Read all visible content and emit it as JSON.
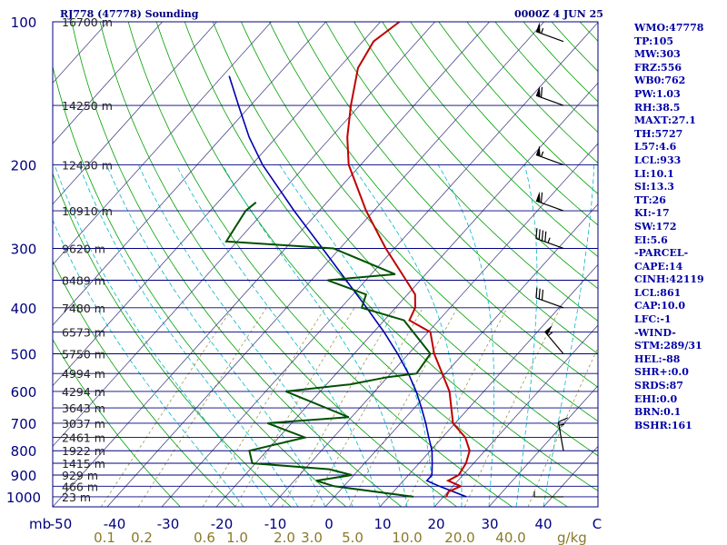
{
  "header": {
    "title": "RJ778 (47778) Sounding",
    "time": "0000Z  4 JUN 25"
  },
  "indices": [
    "WMO:47778",
    "TP:105",
    "MW:303",
    "FRZ:556",
    "WB0:762",
    "PW:1.03",
    "RH:38.5",
    "MAXT:27.1",
    "TH:5727",
    "L57:4.6",
    "LCL:933",
    "LI:10.1",
    "SI:13.3",
    "TT:26",
    "KI:-17",
    "SW:172",
    "EI:5.6",
    "-PARCEL-",
    "CAPE:14",
    "CINH:42119",
    "LCL:861",
    "CAP:10.0",
    "LFC:-1",
    "-WIND-",
    "STM:289/31",
    "HEL:-88",
    "SHR+:0.0",
    "SRDS:87",
    "EHI:0.0",
    "BRN:0.1",
    "BSHR:161"
  ],
  "colors": {
    "isobar": "#00007f",
    "isotherm": "#4a4a8a",
    "dry_adiabat": "#00a000",
    "moist_adiabat": "#00b8c8",
    "mixing_ratio": "#9a9a4a",
    "temperature": "#c00000",
    "dewpoint": "#005000",
    "parcel": "#0000b0",
    "labels_left": "#00007f",
    "labels_bottom_temp": "#00007f",
    "labels_bottom_mix": "#8a7a2a",
    "wind": "#000000"
  },
  "chart_data": {
    "type": "skew-t",
    "pressure_labels": [
      "100",
      "200",
      "300",
      "400",
      "500",
      "600",
      "700",
      "800",
      "900",
      "1000"
    ],
    "pressure_levels": [
      100,
      200,
      300,
      400,
      500,
      600,
      700,
      800,
      900,
      1000
    ],
    "height_labels": [
      {
        "p": 100,
        "text": "16700 m"
      },
      {
        "p": 150,
        "text": "14250 m"
      },
      {
        "p": 200,
        "text": "12430 m"
      },
      {
        "p": 250,
        "text": "10910 m"
      },
      {
        "p": 300,
        "text": "9620 m"
      },
      {
        "p": 350,
        "text": "8489 m"
      },
      {
        "p": 400,
        "text": "7480 m"
      },
      {
        "p": 450,
        "text": "6573 m"
      },
      {
        "p": 500,
        "text": "5750 m"
      },
      {
        "p": 550,
        "text": "4994 m"
      },
      {
        "p": 600,
        "text": "4294 m"
      },
      {
        "p": 650,
        "text": "3643 m"
      },
      {
        "p": 700,
        "text": "3037 m"
      },
      {
        "p": 750,
        "text": "2461 m"
      },
      {
        "p": 800,
        "text": "1922 m"
      },
      {
        "p": 850,
        "text": "1415 m"
      },
      {
        "p": 900,
        "text": "929 m"
      },
      {
        "p": 950,
        "text": "466 m"
      },
      {
        "p": 1000,
        "text": "23 m"
      }
    ],
    "temp_axis_label": "mb",
    "temp_ticks": [
      "-50",
      "-40",
      "-30",
      "-20",
      "-10",
      "0",
      "10",
      "20",
      "30",
      "40",
      "C"
    ],
    "mixing_ratio_labels": [
      "0.1",
      "0.2",
      "0.6",
      "1.0",
      "2.0",
      "3.0",
      "5.0",
      "10.0",
      "20.0",
      "40.0"
    ],
    "mixing_ratio_unit": "g/kg",
    "temperature": [
      [
        1000,
        20.5
      ],
      [
        975,
        20.1
      ],
      [
        950,
        21.4
      ],
      [
        925,
        18.2
      ],
      [
        900,
        19.2
      ],
      [
        850,
        18.6
      ],
      [
        800,
        17.2
      ],
      [
        750,
        14.2
      ],
      [
        700,
        9.6
      ],
      [
        600,
        3.7
      ],
      [
        500,
        -5.3
      ],
      [
        450,
        -9.6
      ],
      [
        425,
        -15.4
      ],
      [
        400,
        -16.4
      ],
      [
        375,
        -18.6
      ],
      [
        350,
        -22.6
      ],
      [
        300,
        -31.6
      ],
      [
        250,
        -41.4
      ],
      [
        200,
        -52.2
      ],
      [
        175,
        -57.0
      ],
      [
        150,
        -61.6
      ],
      [
        125,
        -66.5
      ],
      [
        110,
        -68.0
      ],
      [
        100,
        -66.5
      ]
    ],
    "dewpoint": [
      [
        1000,
        14.5
      ],
      [
        950,
        -1.8
      ],
      [
        925,
        -6.0
      ],
      [
        900,
        -0.4
      ],
      [
        875,
        -5.5
      ],
      [
        850,
        -20.6
      ],
      [
        800,
        -23.2
      ],
      [
        750,
        -15.2
      ],
      [
        700,
        -24.4
      ],
      [
        680,
        -10.5
      ],
      [
        600,
        -26.3
      ],
      [
        580,
        -15.7
      ],
      [
        560,
        -10.0
      ],
      [
        550,
        -5.3
      ],
      [
        500,
        -6.0
      ],
      [
        425,
        -16.4
      ],
      [
        400,
        -26.2
      ],
      [
        375,
        -27.6
      ],
      [
        350,
        -37.0
      ],
      [
        340,
        -25.6
      ],
      [
        300,
        -41.2
      ],
      [
        290,
        -62.0
      ],
      [
        250,
        -63.5
      ],
      [
        240,
        -63.0
      ]
    ],
    "parcel": [
      [
        1000,
        24.2
      ],
      [
        950,
        17.5
      ],
      [
        925,
        14.3
      ],
      [
        900,
        14.3
      ],
      [
        850,
        12.4
      ],
      [
        800,
        10.3
      ],
      [
        750,
        7.5
      ],
      [
        700,
        4.6
      ],
      [
        650,
        1.3
      ],
      [
        600,
        -2.4
      ],
      [
        550,
        -6.8
      ],
      [
        500,
        -12.0
      ],
      [
        450,
        -18.1
      ],
      [
        400,
        -25.3
      ],
      [
        350,
        -33.6
      ],
      [
        300,
        -43.2
      ],
      [
        250,
        -54.6
      ],
      [
        200,
        -68.0
      ],
      [
        175,
        -75.0
      ],
      [
        150,
        -82.2
      ],
      [
        130,
        -88.8
      ]
    ],
    "wind_barbs": [
      {
        "p": 110,
        "dir": 290,
        "spd": 55
      },
      {
        "p": 150,
        "dir": 290,
        "spd": 60
      },
      {
        "p": 200,
        "dir": 290,
        "spd": 55
      },
      {
        "p": 250,
        "dir": 290,
        "spd": 60
      },
      {
        "p": 300,
        "dir": 290,
        "spd": 45
      },
      {
        "p": 400,
        "dir": 290,
        "spd": 30
      },
      {
        "p": 500,
        "dir": 320,
        "spd": 55
      },
      {
        "p": 800,
        "dir": 350,
        "spd": 15
      },
      {
        "p": 1000,
        "dir": 270,
        "spd": 5
      }
    ]
  }
}
